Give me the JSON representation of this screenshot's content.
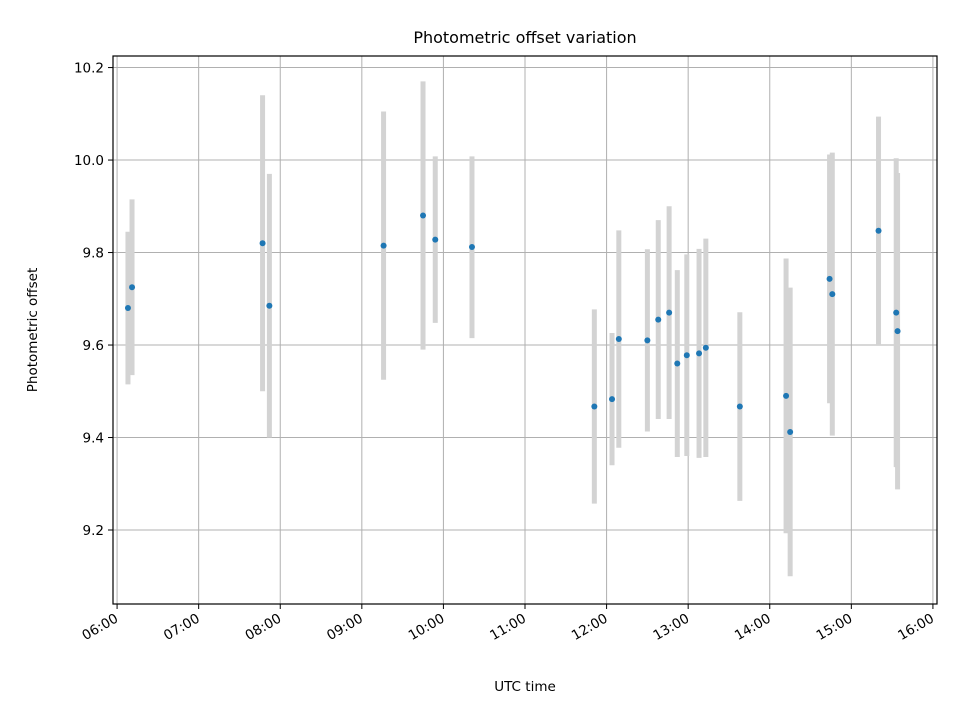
{
  "chart_data": {
    "type": "scatter",
    "title": "Photometric offset variation",
    "xlabel": "UTC time",
    "ylabel": "Photometric offset",
    "x_axis": "time",
    "xlim": [
      "05:57",
      "16:03"
    ],
    "ylim": [
      9.04,
      10.225
    ],
    "x_ticks": [
      "06:00",
      "07:00",
      "08:00",
      "09:00",
      "10:00",
      "11:00",
      "12:00",
      "13:00",
      "14:00",
      "15:00",
      "16:00"
    ],
    "y_ticks": [
      "9.2",
      "9.4",
      "9.6",
      "9.8",
      "10.0",
      "10.2"
    ],
    "grid": true,
    "legend": "none",
    "colors": {
      "point": "#1f77b4",
      "errorbar": "#d3d3d3",
      "grid": "#b0b0b0"
    },
    "series": [
      {
        "points": [
          {
            "x": "06:08",
            "y": 9.68,
            "ylow": 9.515,
            "yhigh": 9.845
          },
          {
            "x": "06:11",
            "y": 9.725,
            "ylow": 9.535,
            "yhigh": 9.915
          },
          {
            "x": "07:47",
            "y": 9.82,
            "ylow": 9.5,
            "yhigh": 10.14
          },
          {
            "x": "07:52",
            "y": 9.685,
            "ylow": 9.4,
            "yhigh": 9.97
          },
          {
            "x": "09:16",
            "y": 9.815,
            "ylow": 9.525,
            "yhigh": 10.105
          },
          {
            "x": "09:45",
            "y": 9.88,
            "ylow": 9.59,
            "yhigh": 10.17
          },
          {
            "x": "09:54",
            "y": 9.828,
            "ylow": 9.648,
            "yhigh": 10.008
          },
          {
            "x": "10:21",
            "y": 9.812,
            "ylow": 9.615,
            "yhigh": 10.008
          },
          {
            "x": "11:51",
            "y": 9.467,
            "ylow": 9.257,
            "yhigh": 9.677
          },
          {
            "x": "12:04",
            "y": 9.483,
            "ylow": 9.34,
            "yhigh": 9.626
          },
          {
            "x": "12:09",
            "y": 9.613,
            "ylow": 9.378,
            "yhigh": 9.848
          },
          {
            "x": "12:30",
            "y": 9.61,
            "ylow": 9.413,
            "yhigh": 9.807
          },
          {
            "x": "12:38",
            "y": 9.655,
            "ylow": 9.44,
            "yhigh": 9.87
          },
          {
            "x": "12:46",
            "y": 9.67,
            "ylow": 9.44,
            "yhigh": 9.9
          },
          {
            "x": "12:52",
            "y": 9.56,
            "ylow": 9.358,
            "yhigh": 9.762
          },
          {
            "x": "12:59",
            "y": 9.578,
            "ylow": 9.36,
            "yhigh": 9.796
          },
          {
            "x": "13:08",
            "y": 9.582,
            "ylow": 9.356,
            "yhigh": 9.808
          },
          {
            "x": "13:13",
            "y": 9.594,
            "ylow": 9.358,
            "yhigh": 9.83
          },
          {
            "x": "13:38",
            "y": 9.467,
            "ylow": 9.263,
            "yhigh": 9.671
          },
          {
            "x": "14:12",
            "y": 9.49,
            "ylow": 9.193,
            "yhigh": 9.787
          },
          {
            "x": "14:15",
            "y": 9.412,
            "ylow": 9.1,
            "yhigh": 9.724
          },
          {
            "x": "14:44",
            "y": 9.743,
            "ylow": 9.474,
            "yhigh": 10.012
          },
          {
            "x": "14:46",
            "y": 9.71,
            "ylow": 9.404,
            "yhigh": 10.016
          },
          {
            "x": "15:20",
            "y": 9.847,
            "ylow": 9.6,
            "yhigh": 10.094
          },
          {
            "x": "15:33",
            "y": 9.67,
            "ylow": 9.336,
            "yhigh": 10.004
          },
          {
            "x": "15:34",
            "y": 9.63,
            "ylow": 9.288,
            "yhigh": 9.972
          }
        ]
      }
    ]
  }
}
